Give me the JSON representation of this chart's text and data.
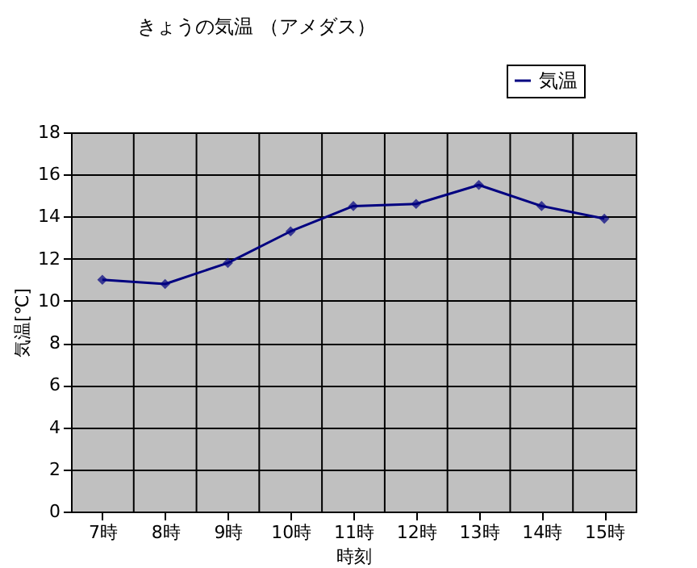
{
  "chart_data": {
    "type": "line",
    "title": "きょうの気温 （アメダス）",
    "xlabel": "時刻",
    "ylabel": "気温[℃]",
    "categories": [
      "7時",
      "8時",
      "9時",
      "10時",
      "11時",
      "12時",
      "13時",
      "14時",
      "15時"
    ],
    "series": [
      {
        "name": "気温",
        "color": "#000080",
        "values": [
          11.0,
          10.8,
          11.8,
          13.3,
          14.5,
          14.6,
          15.5,
          14.5,
          13.9
        ]
      }
    ],
    "ylim": [
      0,
      18
    ],
    "yticks": [
      0,
      2,
      4,
      6,
      8,
      10,
      12,
      14,
      16,
      18
    ],
    "grid": true,
    "legend": "top right",
    "marker": "diamond",
    "line_style": "solid"
  }
}
